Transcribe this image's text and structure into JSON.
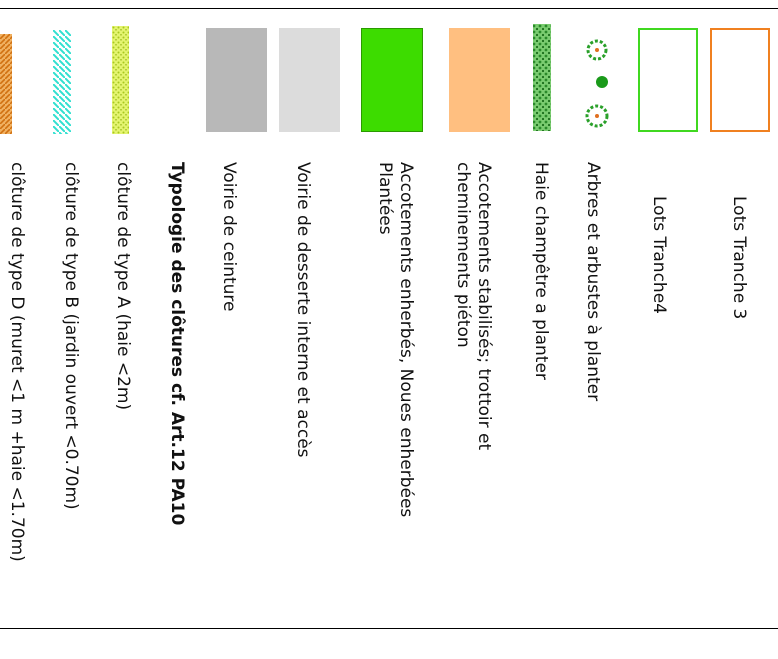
{
  "legend": {
    "items": [
      {
        "id": "lots-tranche-3",
        "label": "Lots Tranche 3",
        "color": "#f08020"
      },
      {
        "id": "lots-tranche-4",
        "label": "Lots Tranche4",
        "color": "#40d820"
      },
      {
        "id": "arbres",
        "label": "Arbres et arbustes à planter",
        "icon": "tree-icon",
        "color": "#2aa02a"
      },
      {
        "id": "haie",
        "label": "Haie champêtre a planter",
        "icon": "hedge-icon",
        "color": "#3a9a3a"
      },
      {
        "id": "accotements-stabilises",
        "label": "Accotements stabilisés; trottoir et\ncheminements piéton",
        "color": "#ffbf80"
      },
      {
        "id": "accotements-enherbes",
        "label": "Accotements enherbés, Noues enherbées\nPlantées",
        "color": "#3ddc00"
      },
      {
        "id": "voirie-desserte",
        "label": "Voirie de desserte interne et accès",
        "color": "#dcdcdc"
      },
      {
        "id": "voirie-ceinture",
        "label": "Voirie de ceinture",
        "color": "#b8b8b8"
      },
      {
        "id": "typologie-heading",
        "label": "Typologie des clôtures cf. Art.12 PA10"
      },
      {
        "id": "cloture-a",
        "label": "clôture de type A (haie <2m)",
        "color": "#d4ec40"
      },
      {
        "id": "cloture-b",
        "label": "clôture de type B (jardin ouvert <0.70m)",
        "color": "#40e8d8"
      },
      {
        "id": "cloture-d",
        "label": "clôture de type D (muret <1 m +haie <1.70m)",
        "color": "#e08020"
      }
    ]
  }
}
